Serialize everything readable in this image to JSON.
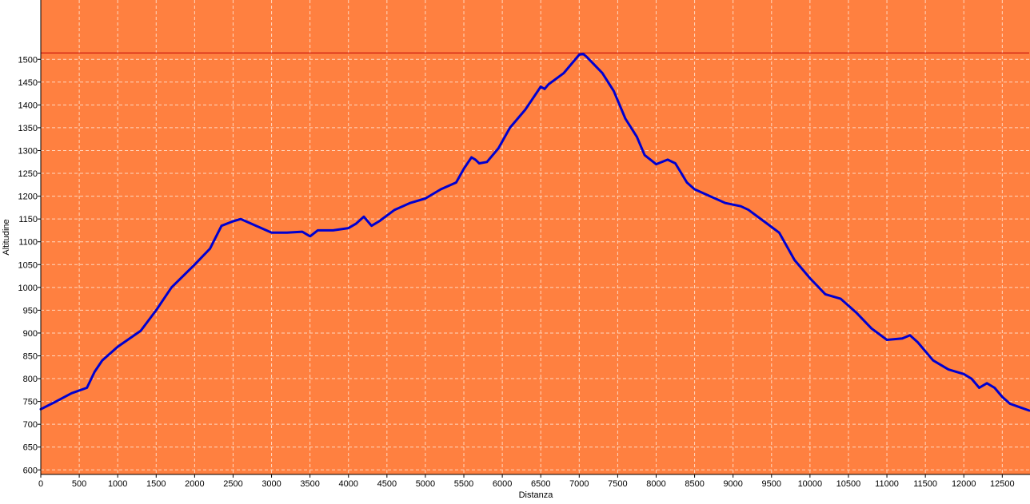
{
  "chart_data": {
    "type": "line",
    "title": "",
    "xlabel": "Distanza",
    "ylabel": "Altitudine",
    "xlim": [
      0,
      12850
    ],
    "ylim": [
      590,
      1630
    ],
    "xticks": [
      0,
      500,
      1000,
      1500,
      2000,
      2500,
      3000,
      3500,
      4000,
      4500,
      5000,
      5500,
      6000,
      6500,
      7000,
      7500,
      8000,
      8500,
      9000,
      9500,
      10000,
      10500,
      11000,
      11500,
      12000,
      12500
    ],
    "yticks": [
      600,
      650,
      700,
      750,
      800,
      850,
      900,
      950,
      1000,
      1050,
      1100,
      1150,
      1200,
      1250,
      1300,
      1350,
      1400,
      1450,
      1500
    ],
    "grid": true,
    "max_line": 1514,
    "colors": {
      "plot_background": "#ff8040",
      "line": "#0000d0",
      "max_line": "#c00000",
      "grid": "#ffd7bf",
      "axis": "#000000"
    },
    "series": [
      {
        "x": [
          0,
          200,
          400,
          600,
          700,
          800,
          1000,
          1300,
          1500,
          1700,
          2000,
          2200,
          2350,
          2500,
          2600,
          2800,
          3000,
          3200,
          3400,
          3500,
          3600,
          3800,
          4000,
          4100,
          4200,
          4300,
          4400,
          4600,
          4800,
          5000,
          5200,
          5400,
          5500,
          5600,
          5650,
          5700,
          5800,
          5950,
          6100,
          6300,
          6500,
          6550,
          6600,
          6800,
          7000,
          7050,
          7100,
          7300,
          7450,
          7600,
          7750,
          7850,
          8000,
          8150,
          8250,
          8400,
          8500,
          8700,
          8900,
          9100,
          9200,
          9400,
          9600,
          9800,
          10000,
          10200,
          10400,
          10600,
          10800,
          11000,
          11200,
          11300,
          11400,
          11600,
          11800,
          12000,
          12100,
          12200,
          12300,
          12400,
          12500,
          12600,
          12850
        ],
        "y": [
          733,
          750,
          768,
          780,
          815,
          840,
          870,
          905,
          950,
          1000,
          1050,
          1085,
          1135,
          1145,
          1150,
          1135,
          1120,
          1120,
          1122,
          1112,
          1125,
          1125,
          1130,
          1140,
          1155,
          1135,
          1145,
          1170,
          1185,
          1195,
          1215,
          1230,
          1260,
          1285,
          1280,
          1272,
          1275,
          1305,
          1350,
          1390,
          1440,
          1435,
          1445,
          1470,
          1510,
          1512,
          1505,
          1470,
          1430,
          1370,
          1330,
          1290,
          1270,
          1280,
          1272,
          1230,
          1215,
          1200,
          1185,
          1178,
          1170,
          1145,
          1120,
          1060,
          1020,
          985,
          975,
          945,
          910,
          885,
          888,
          895,
          880,
          840,
          820,
          810,
          800,
          780,
          790,
          780,
          760,
          745,
          730
        ]
      }
    ]
  }
}
